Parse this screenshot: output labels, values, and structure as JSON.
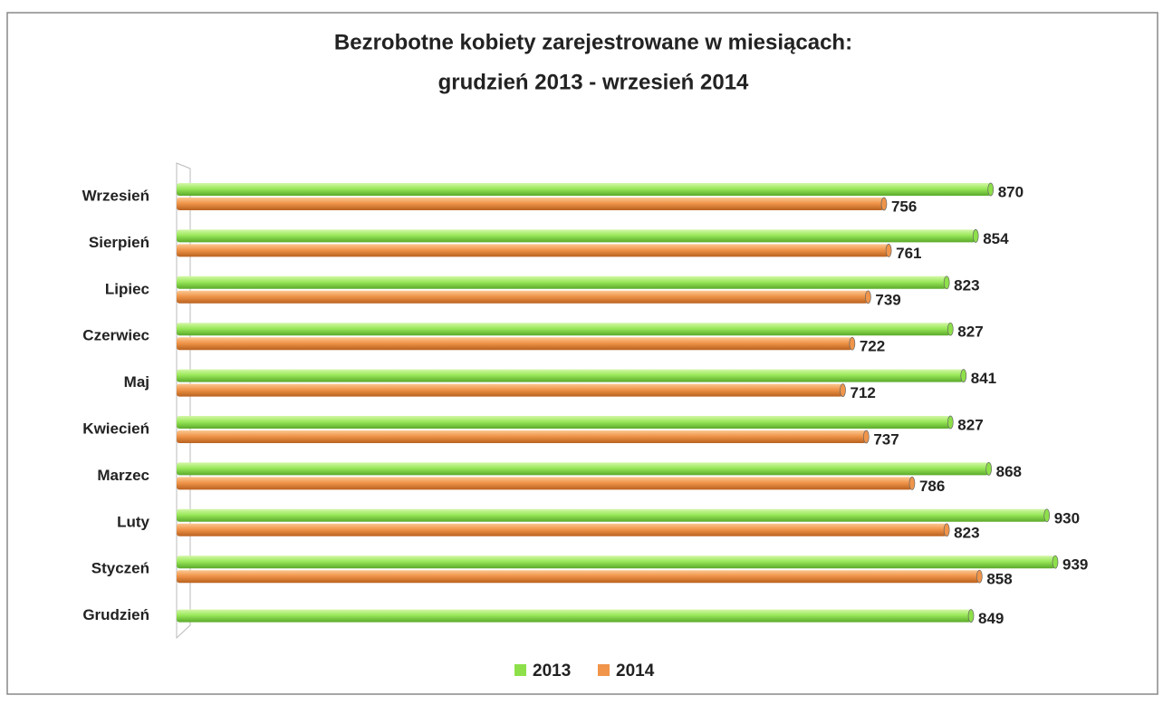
{
  "chart_data": {
    "type": "bar",
    "orientation": "horizontal",
    "title": [
      "Bezrobotne kobiety zarejestrowane w miesiącach:",
      "grudzień 2013 - wrzesień 2014"
    ],
    "categories": [
      "Wrzesień",
      "Sierpień",
      "Lipiec",
      "Czerwiec",
      "Maj",
      "Kwiecień",
      "Marzec",
      "Luty",
      "Styczeń",
      "Grudzień"
    ],
    "series": [
      {
        "name": "2013",
        "color": "#8ee04a",
        "values": [
          870,
          854,
          823,
          827,
          841,
          827,
          868,
          930,
          939,
          849
        ]
      },
      {
        "name": "2014",
        "color": "#f0954a",
        "values": [
          756,
          761,
          739,
          722,
          712,
          737,
          786,
          823,
          858,
          null
        ]
      }
    ],
    "legend": "bottom"
  }
}
